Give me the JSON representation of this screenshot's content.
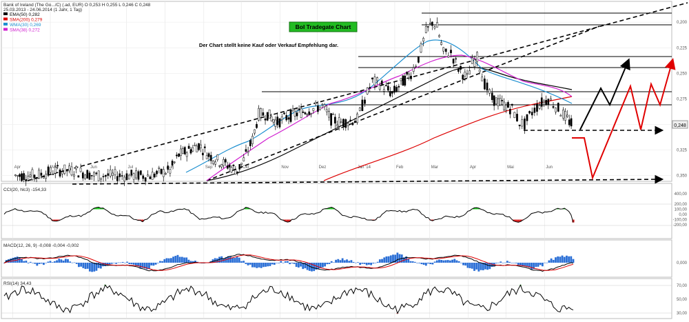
{
  "header": {
    "instrument": "Bank of Ireland (The Go.../C) (.ad, EUR) O 0,253 H 0,255 L 0,246 C 0,248",
    "range": "25.03.2013 - 24.06.2014 (1 Jahr, 1 Tag)",
    "legend": [
      {
        "label": "EMA(50) 0,282",
        "color": "#000000"
      },
      {
        "label": "SMA(200) 0,279",
        "color": "#dd0000"
      },
      {
        "label": "WMA(30) 0,269",
        "color": "#1e90d0"
      },
      {
        "label": "SMA(38) 0,272",
        "color": "#d020d0"
      }
    ]
  },
  "badge": {
    "label": "BoI Tradegate Chart",
    "bg": "#22bb22"
  },
  "disclaimer": "Der Chart stellt keine Kauf oder Verkauf Empfehlung dar.",
  "price_panel": {
    "y_ticks": [
      "0,350",
      "0,325",
      "0,300",
      "0,275",
      "0,250",
      "0,225",
      "0,200"
    ],
    "last_price": "0,248",
    "x_months": [
      "Apr",
      "Mai",
      "Jun",
      "Jul",
      "Aug",
      "Sep",
      "Okt",
      "Nov",
      "Dez",
      "Jan '14",
      "Feb",
      "Mar",
      "Apr",
      "Mai",
      "Jun"
    ]
  },
  "cci_panel": {
    "title": "CCI(20, hlc3) -154,33",
    "ticks": [
      "400,00",
      "200,00",
      "100,00",
      "0,00",
      "-100,00",
      "-200,00"
    ],
    "value_label": "-100,00"
  },
  "macd_panel": {
    "title": "MACD(12, 26, 9) -0,008 -0,004 -0,002",
    "ticks": [
      "0,000"
    ]
  },
  "rsi_panel": {
    "title": "RSI(14) 34,43",
    "ticks": [
      "70,00",
      "50,00",
      "30,00"
    ]
  },
  "chart_data": {
    "type": "line",
    "title": "BoI Tradegate Chart",
    "period": "25.03.2013 - 24.06.2014",
    "currency": "EUR",
    "price_axis": {
      "ylim": [
        0.195,
        0.365
      ],
      "ticks": [
        0.2,
        0.225,
        0.25,
        0.275,
        0.3,
        0.325,
        0.35
      ]
    },
    "close_series": [
      [
        "2013-04-03",
        0.2
      ],
      [
        "2013-04-20",
        0.2
      ],
      [
        "2013-05-05",
        0.205
      ],
      [
        "2013-05-20",
        0.205
      ],
      [
        "2013-06-05",
        0.2
      ],
      [
        "2013-06-20",
        0.2
      ],
      [
        "2013-07-05",
        0.2
      ],
      [
        "2013-07-20",
        0.2
      ],
      [
        "2013-08-05",
        0.205
      ],
      [
        "2013-08-12",
        0.22
      ],
      [
        "2013-08-20",
        0.225
      ],
      [
        "2013-08-28",
        0.23
      ],
      [
        "2013-09-05",
        0.22
      ],
      [
        "2013-09-12",
        0.215
      ],
      [
        "2013-09-20",
        0.21
      ],
      [
        "2013-09-28",
        0.205
      ],
      [
        "2013-10-03",
        0.215
      ],
      [
        "2013-10-10",
        0.235
      ],
      [
        "2013-10-15",
        0.26
      ],
      [
        "2013-10-22",
        0.26
      ],
      [
        "2013-10-30",
        0.252
      ],
      [
        "2013-11-08",
        0.258
      ],
      [
        "2013-11-18",
        0.262
      ],
      [
        "2013-11-26",
        0.265
      ],
      [
        "2013-12-05",
        0.268
      ],
      [
        "2013-12-12",
        0.255
      ],
      [
        "2013-12-20",
        0.252
      ],
      [
        "2014-01-02",
        0.255
      ],
      [
        "2014-01-08",
        0.275
      ],
      [
        "2014-01-14",
        0.292
      ],
      [
        "2014-01-20",
        0.29
      ],
      [
        "2014-01-25",
        0.285
      ],
      [
        "2014-01-30",
        0.28
      ],
      [
        "2014-02-06",
        0.29
      ],
      [
        "2014-02-14",
        0.3
      ],
      [
        "2014-02-20",
        0.315
      ],
      [
        "2014-02-26",
        0.34
      ],
      [
        "2014-03-03",
        0.35
      ],
      [
        "2014-03-07",
        0.345
      ],
      [
        "2014-03-12",
        0.32
      ],
      [
        "2014-03-18",
        0.32
      ],
      [
        "2014-03-24",
        0.305
      ],
      [
        "2014-03-31",
        0.295
      ],
      [
        "2014-04-04",
        0.31
      ],
      [
        "2014-04-08",
        0.315
      ],
      [
        "2014-04-14",
        0.29
      ],
      [
        "2014-04-20",
        0.275
      ],
      [
        "2014-04-28",
        0.27
      ],
      [
        "2014-05-06",
        0.265
      ],
      [
        "2014-05-12",
        0.252
      ],
      [
        "2014-05-16",
        0.25
      ],
      [
        "2014-05-22",
        0.262
      ],
      [
        "2014-05-28",
        0.27
      ],
      [
        "2014-06-04",
        0.275
      ],
      [
        "2014-06-10",
        0.268
      ],
      [
        "2014-06-16",
        0.26
      ],
      [
        "2014-06-24",
        0.248
      ]
    ],
    "indicators": [
      {
        "name": "EMA(50)",
        "value": 0.282
      },
      {
        "name": "SMA(200)",
        "value": 0.279
      },
      {
        "name": "WMA(30)",
        "value": 0.269
      },
      {
        "name": "SMA(38)",
        "value": 0.272
      }
    ],
    "horizontal_levels": [
      0.348,
      0.337,
      0.325,
      0.312,
      0.286,
      0.275,
      0.25,
      0.205
    ],
    "oscillators": {
      "CCI": -154.33,
      "MACD": [
        -0.008,
        -0.004,
        -0.002
      ],
      "RSI": 34.43
    },
    "grid": true
  }
}
